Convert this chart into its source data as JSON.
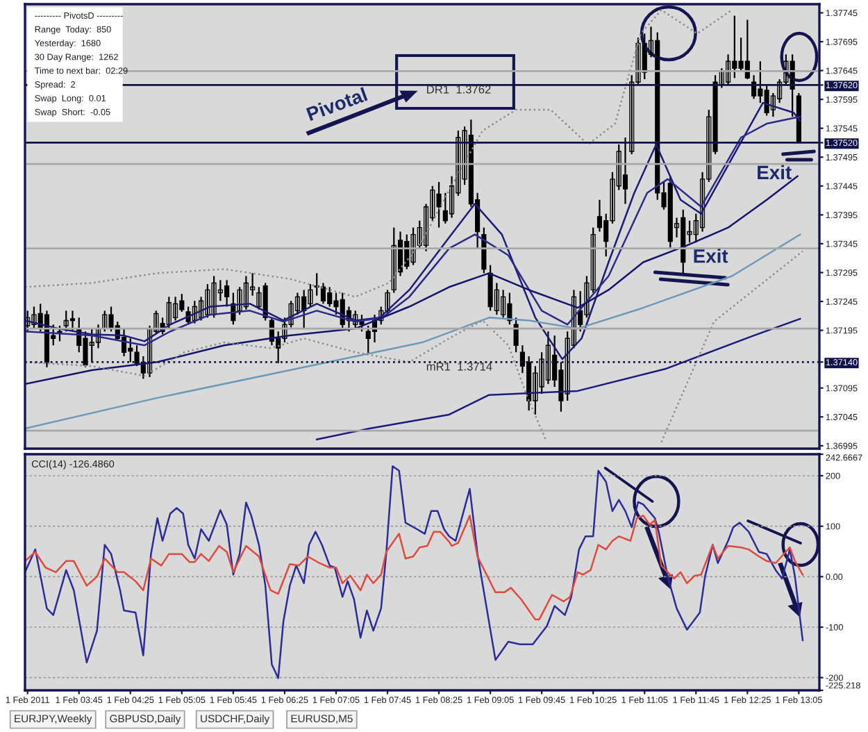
{
  "chart_data": [
    {
      "type": "candlestick",
      "x": [
        "2011-02-01T03:05",
        "2011-02-01T03:10",
        "2011-02-01T03:15",
        "2011-02-01T03:20",
        "2011-02-01T03:25",
        "2011-02-01T03:30",
        "2011-02-01T03:35",
        "2011-02-01T03:40",
        "2011-02-01T03:45",
        "2011-02-01T03:50",
        "2011-02-01T03:55",
        "2011-02-01T04:00",
        "2011-02-01T04:05",
        "2011-02-01T04:10",
        "2011-02-01T04:15",
        "2011-02-01T04:20",
        "2011-02-01T04:25",
        "2011-02-01T04:30",
        "2011-02-01T04:35",
        "2011-02-01T04:40",
        "2011-02-01T04:45",
        "2011-02-01T04:50",
        "2011-02-01T04:55",
        "2011-02-01T05:00",
        "2011-02-01T05:05",
        "2011-02-01T05:10",
        "2011-02-01T05:15",
        "2011-02-01T05:20",
        "2011-02-01T05:25",
        "2011-02-01T05:30",
        "2011-02-01T05:35",
        "2011-02-01T05:40",
        "2011-02-01T05:45",
        "2011-02-01T05:50",
        "2011-02-01T05:55",
        "2011-02-01T06:00",
        "2011-02-01T06:05",
        "2011-02-01T06:10",
        "2011-02-01T06:15",
        "2011-02-01T06:20",
        "2011-02-01T06:25",
        "2011-02-01T06:30",
        "2011-02-01T06:35",
        "2011-02-01T06:40",
        "2011-02-01T06:45",
        "2011-02-01T06:50",
        "2011-02-01T06:55",
        "2011-02-01T07:00",
        "2011-02-01T07:05",
        "2011-02-01T07:10",
        "2011-02-01T07:15",
        "2011-02-01T07:20",
        "2011-02-01T07:25",
        "2011-02-01T07:30",
        "2011-02-01T07:35",
        "2011-02-01T07:40",
        "2011-02-01T07:45",
        "2011-02-01T07:50",
        "2011-02-01T07:55",
        "2011-02-01T08:00",
        "2011-02-01T08:05",
        "2011-02-01T08:10",
        "2011-02-01T08:15",
        "2011-02-01T08:20",
        "2011-02-01T08:25",
        "2011-02-01T08:30",
        "2011-02-01T08:35",
        "2011-02-01T08:40",
        "2011-02-01T08:45",
        "2011-02-01T08:50",
        "2011-02-01T08:55",
        "2011-02-01T09:00",
        "2011-02-01T09:05",
        "2011-02-01T09:10",
        "2011-02-01T09:15",
        "2011-02-01T09:20",
        "2011-02-01T09:25",
        "2011-02-01T09:30",
        "2011-02-01T09:35",
        "2011-02-01T09:40",
        "2011-02-01T09:45",
        "2011-02-01T09:50",
        "2011-02-01T09:55",
        "2011-02-01T10:00",
        "2011-02-01T10:05",
        "2011-02-01T10:10",
        "2011-02-01T10:15",
        "2011-02-01T10:20",
        "2011-02-01T10:25",
        "2011-02-01T10:30",
        "2011-02-01T10:35",
        "2011-02-01T10:40",
        "2011-02-01T10:45",
        "2011-02-01T10:50",
        "2011-02-01T10:55",
        "2011-02-01T11:00",
        "2011-02-01T11:05",
        "2011-02-01T11:10",
        "2011-02-01T11:15",
        "2011-02-01T11:20",
        "2011-02-01T11:25",
        "2011-02-01T11:30",
        "2011-02-01T11:35",
        "2011-02-01T11:40",
        "2011-02-01T11:45",
        "2011-02-01T11:50",
        "2011-02-01T11:55",
        "2011-02-01T12:00",
        "2011-02-01T12:05",
        "2011-02-01T12:10",
        "2011-02-01T12:15",
        "2011-02-01T12:20",
        "2011-02-01T12:25",
        "2011-02-01T12:30",
        "2011-02-01T12:35",
        "2011-02-01T12:40",
        "2011-02-01T12:45",
        "2011-02-01T12:50",
        "2011-02-01T12:55",
        "2011-02-01T13:00",
        "2011-02-01T13:05"
      ],
      "ohlc": [
        [
          1.37203,
          1.37229,
          1.37193,
          1.37217
        ],
        [
          1.37205,
          1.37236,
          1.37198,
          1.37222
        ],
        [
          1.37224,
          1.37241,
          1.37193,
          1.372
        ],
        [
          1.37222,
          1.37229,
          1.37131,
          1.3714
        ],
        [
          1.37186,
          1.37205,
          1.37169,
          1.37181
        ],
        [
          1.37193,
          1.37203,
          1.37176,
          1.37191
        ],
        [
          1.37203,
          1.37229,
          1.37193,
          1.37212
        ],
        [
          1.37215,
          1.37229,
          1.37193,
          1.37212
        ],
        [
          1.37198,
          1.37217,
          1.37157,
          1.37169
        ],
        [
          1.37181,
          1.37193,
          1.37131,
          1.37135
        ],
        [
          1.37169,
          1.37198,
          1.3714,
          1.37174
        ],
        [
          1.37174,
          1.37205,
          1.37164,
          1.37198
        ],
        [
          1.37198,
          1.37229,
          1.37193,
          1.37222
        ],
        [
          1.37222,
          1.37236,
          1.37193,
          1.37198
        ],
        [
          1.37203,
          1.3721,
          1.37179,
          1.37181
        ],
        [
          1.37183,
          1.37198,
          1.3715,
          1.37157
        ],
        [
          1.37164,
          1.37181,
          1.3714,
          1.37159
        ],
        [
          1.37157,
          1.37169,
          1.37133,
          1.37138
        ],
        [
          1.3714,
          1.3715,
          1.37111,
          1.37121
        ],
        [
          1.37121,
          1.37203,
          1.37114,
          1.37198
        ],
        [
          1.37193,
          1.37229,
          1.37188,
          1.37224
        ],
        [
          1.37207,
          1.37217,
          1.37188,
          1.37193
        ],
        [
          1.37205,
          1.37253,
          1.37198,
          1.37243
        ],
        [
          1.37217,
          1.37253,
          1.37212,
          1.37241
        ],
        [
          1.37246,
          1.37258,
          1.37227,
          1.37231
        ],
        [
          1.37227,
          1.37236,
          1.37205,
          1.3721
        ],
        [
          1.37212,
          1.37246,
          1.37207,
          1.37236
        ],
        [
          1.37217,
          1.37253,
          1.37212,
          1.37246
        ],
        [
          1.37222,
          1.37275,
          1.37217,
          1.37265
        ],
        [
          1.37222,
          1.37289,
          1.37217,
          1.37277
        ],
        [
          1.3726,
          1.37282,
          1.37246,
          1.37265
        ],
        [
          1.37272,
          1.37282,
          1.37236,
          1.37253
        ],
        [
          1.37241,
          1.3726,
          1.37205,
          1.37212
        ],
        [
          1.37229,
          1.3727,
          1.37222,
          1.37265
        ],
        [
          1.37236,
          1.37289,
          1.37231,
          1.37277
        ],
        [
          1.37265,
          1.37294,
          1.37255,
          1.3727
        ],
        [
          1.37236,
          1.3727,
          1.37231,
          1.3726
        ],
        [
          1.37272,
          1.37277,
          1.37212,
          1.37217
        ],
        [
          1.37212,
          1.37217,
          1.37169,
          1.37176
        ],
        [
          1.37181,
          1.37193,
          1.37138,
          1.37164
        ],
        [
          1.37181,
          1.37217,
          1.37174,
          1.37205
        ],
        [
          1.37205,
          1.37246,
          1.372,
          1.37241
        ],
        [
          1.37229,
          1.3726,
          1.37222,
          1.37253
        ],
        [
          1.37253,
          1.37265,
          1.37198,
          1.37229
        ],
        [
          1.37241,
          1.37275,
          1.37236,
          1.37265
        ],
        [
          1.3727,
          1.37294,
          1.37255,
          1.37272
        ],
        [
          1.3727,
          1.37277,
          1.37241,
          1.37246
        ],
        [
          1.3726,
          1.3727,
          1.37236,
          1.37241
        ],
        [
          1.37246,
          1.3726,
          1.37222,
          1.37236
        ],
        [
          1.37248,
          1.3726,
          1.37198,
          1.37205
        ],
        [
          1.37229,
          1.37236,
          1.37193,
          1.37212
        ],
        [
          1.37205,
          1.37229,
          1.37198,
          1.37222
        ],
        [
          1.37212,
          1.37222,
          1.37193,
          1.37205
        ],
        [
          1.37193,
          1.37203,
          1.37155,
          1.37181
        ],
        [
          1.37212,
          1.37222,
          1.37174,
          1.37193
        ],
        [
          1.37212,
          1.37236,
          1.37205,
          1.37229
        ],
        [
          1.37229,
          1.37265,
          1.37222,
          1.3726
        ],
        [
          1.37265,
          1.37373,
          1.3726,
          1.37342
        ],
        [
          1.37351,
          1.37366,
          1.37289,
          1.37296
        ],
        [
          1.37349,
          1.37361,
          1.37301,
          1.37306
        ],
        [
          1.37313,
          1.37373,
          1.37308,
          1.37361
        ],
        [
          1.37342,
          1.37385,
          1.37337,
          1.37373
        ],
        [
          1.37342,
          1.37414,
          1.37332,
          1.37409
        ],
        [
          1.3739,
          1.37445,
          1.37385,
          1.37438
        ],
        [
          1.37431,
          1.37452,
          1.37373,
          1.37409
        ],
        [
          1.37402,
          1.37433,
          1.3738,
          1.37385
        ],
        [
          1.37397,
          1.37462,
          1.3739,
          1.37445
        ],
        [
          1.37433,
          1.37541,
          1.37428,
          1.37529
        ],
        [
          1.37457,
          1.37548,
          1.37447,
          1.37541
        ],
        [
          1.37533,
          1.3756,
          1.37409,
          1.37414
        ],
        [
          1.37421,
          1.37433,
          1.37337,
          1.37366
        ],
        [
          1.37361,
          1.37373,
          1.37294,
          1.37301
        ],
        [
          1.37294,
          1.37308,
          1.37229,
          1.37236
        ],
        [
          1.37229,
          1.37277,
          1.37222,
          1.37265
        ],
        [
          1.37222,
          1.37265,
          1.37217,
          1.37253
        ],
        [
          1.37241,
          1.3726,
          1.37205,
          1.37212
        ],
        [
          1.37205,
          1.37217,
          1.37157,
          1.37169
        ],
        [
          1.37157,
          1.37169,
          1.37121,
          1.37133
        ],
        [
          1.3714,
          1.3715,
          1.37056,
          1.37073
        ],
        [
          1.37073,
          1.37133,
          1.37049,
          1.37121
        ],
        [
          1.37097,
          1.37157,
          1.37085,
          1.37145
        ],
        [
          1.37109,
          1.37193,
          1.37102,
          1.37169
        ],
        [
          1.37152,
          1.37186,
          1.37097,
          1.37109
        ],
        [
          1.37126,
          1.3714,
          1.37054,
          1.37073
        ],
        [
          1.37085,
          1.37193,
          1.37073,
          1.37181
        ],
        [
          1.37169,
          1.37265,
          1.37164,
          1.37253
        ],
        [
          1.37229,
          1.37263,
          1.37193,
          1.37205
        ],
        [
          1.37222,
          1.37289,
          1.37217,
          1.37277
        ],
        [
          1.37265,
          1.37373,
          1.3726,
          1.37361
        ],
        [
          1.37392,
          1.37421,
          1.37366,
          1.37373
        ],
        [
          1.37385,
          1.37397,
          1.37323,
          1.37349
        ],
        [
          1.37385,
          1.37469,
          1.3738,
          1.37457
        ],
        [
          1.37445,
          1.37517,
          1.37438,
          1.37505
        ],
        [
          1.37464,
          1.37529,
          1.37414,
          1.3744
        ],
        [
          1.37505,
          1.37637,
          1.375,
          1.37625
        ],
        [
          1.37625,
          1.37702,
          1.3762,
          1.37692
        ],
        [
          1.37692,
          1.37709,
          1.3763,
          1.37642
        ],
        [
          1.37673,
          1.37721,
          1.37668,
          1.37697
        ],
        [
          1.37697,
          1.37711,
          1.37421,
          1.37433
        ],
        [
          1.37433,
          1.37452,
          1.37404,
          1.37409
        ],
        [
          1.3745,
          1.37462,
          1.37337,
          1.37349
        ],
        [
          1.37373,
          1.3739,
          1.37356,
          1.3738
        ],
        [
          1.3739,
          1.37404,
          1.37294,
          1.37313
        ],
        [
          1.37361,
          1.37385,
          1.37347,
          1.37366
        ],
        [
          1.37361,
          1.37397,
          1.37347,
          1.37385
        ],
        [
          1.37373,
          1.37469,
          1.37366,
          1.37457
        ],
        [
          1.37457,
          1.37577,
          1.37452,
          1.37565
        ],
        [
          1.37625,
          1.37637,
          1.375,
          1.37505
        ],
        [
          1.3762,
          1.37649,
          1.37615,
          1.37644
        ],
        [
          1.37625,
          1.37673,
          1.3762,
          1.37661
        ],
        [
          1.37661,
          1.3774,
          1.37632,
          1.37649
        ],
        [
          1.37661,
          1.37702,
          1.37644,
          1.37649
        ],
        [
          1.37661,
          1.37733,
          1.3763,
          1.37632
        ],
        [
          1.37625,
          1.37637,
          1.37596,
          1.37601
        ],
        [
          1.37613,
          1.37661,
          1.37589,
          1.37601
        ],
        [
          1.37611,
          1.3762,
          1.37567,
          1.37572
        ],
        [
          1.37577,
          1.37606,
          1.37565,
          1.37601
        ],
        [
          1.37596,
          1.3763,
          1.37589,
          1.37625
        ],
        [
          1.37625,
          1.37673,
          1.3762,
          1.37661
        ],
        [
          1.37661,
          1.37673,
          1.37565,
          1.37613
        ],
        [
          1.37601,
          1.37606,
          1.37519,
          1.3752
        ]
      ],
      "series": [
        {
          "type": "line",
          "color": "#1c1c78",
          "x": [
            "2011-02-01T03:03",
            "2011-02-01T03:29",
            "2011-02-01T03:55",
            "2011-02-01T04:20",
            "2011-02-01T04:36",
            "2011-02-01T04:56",
            "2011-02-01T05:27",
            "2011-02-01T05:58",
            "2011-02-01T06:24",
            "2011-02-01T06:50",
            "2011-02-01T07:20",
            "2011-02-01T07:39",
            "2011-02-01T08:02",
            "2011-02-01T08:33",
            "2011-02-01T08:53",
            "2011-02-01T09:14",
            "2011-02-01T09:40",
            "2011-02-01T10:01",
            "2011-02-01T10:16",
            "2011-02-01T10:37",
            "2011-02-01T10:57",
            "2011-02-01T11:14",
            "2011-02-01T11:33",
            "2011-02-01T11:49",
            "2011-02-01T12:10",
            "2011-02-01T12:37",
            "2011-02-01T13:01",
            "2011-02-01T13:06"
          ],
          "values": [
            1.37212,
            1.37198,
            1.37188,
            1.37186,
            1.37176,
            1.37205,
            1.37236,
            1.37241,
            1.37212,
            1.37241,
            1.37212,
            1.37217,
            1.37265,
            1.37356,
            1.37414,
            1.37361,
            1.37217,
            1.37145,
            1.37181,
            1.37313,
            1.37433,
            1.37517,
            1.37421,
            1.37397,
            1.37481,
            1.37589,
            1.37572,
            1.37558
          ]
        },
        {
          "type": "line",
          "color": "#2a2a8a",
          "x": [
            "2011-02-01T03:03",
            "2011-02-01T03:55",
            "2011-02-01T04:36",
            "2011-02-01T04:56",
            "2011-02-01T05:27",
            "2011-02-01T05:58",
            "2011-02-01T06:24",
            "2011-02-01T06:50",
            "2011-02-01T07:20",
            "2011-02-01T07:41",
            "2011-02-01T08:02",
            "2011-02-01T08:33",
            "2011-02-01T08:53",
            "2011-02-01T09:19",
            "2011-02-01T09:45",
            "2011-02-01T10:05",
            "2011-02-01T10:37",
            "2011-02-01T11:07",
            "2011-02-01T11:23",
            "2011-02-01T11:49",
            "2011-02-01T12:20",
            "2011-02-01T12:40",
            "2011-02-01T13:06"
          ],
          "values": [
            1.37193,
            1.37186,
            1.37169,
            1.37193,
            1.37222,
            1.37229,
            1.3721,
            1.37229,
            1.3721,
            1.37217,
            1.37253,
            1.37337,
            1.37361,
            1.37325,
            1.37229,
            1.37205,
            1.37289,
            1.37433,
            1.37457,
            1.37409,
            1.37529,
            1.37553,
            1.37565
          ]
        },
        {
          "type": "line",
          "color": "#14146e",
          "x": [
            "2011-02-01T03:03",
            "2011-02-01T03:55",
            "2011-02-01T04:46",
            "2011-02-01T05:38",
            "2011-02-01T06:29",
            "2011-02-01T07:20",
            "2011-02-01T08:02",
            "2011-02-01T08:33",
            "2011-02-01T09:04",
            "2011-02-01T09:35",
            "2011-02-01T10:13",
            "2011-02-01T10:37",
            "2011-02-01T11:04",
            "2011-02-01T11:38",
            "2011-02-01T12:10",
            "2011-02-01T12:40",
            "2011-02-01T13:04"
          ],
          "values": [
            1.37102,
            1.37126,
            1.3714,
            1.37169,
            1.37186,
            1.37198,
            1.37236,
            1.3727,
            1.37294,
            1.37265,
            1.37234,
            1.37265,
            1.37313,
            1.37342,
            1.37373,
            1.37421,
            1.37462
          ]
        },
        {
          "type": "line",
          "color": "#6a9ab8",
          "x": [
            "2011-02-01T03:03",
            "2011-02-01T04:46",
            "2011-02-01T06:29",
            "2011-02-01T08:12",
            "2011-02-01T09:04",
            "2011-02-01T09:35",
            "2011-02-01T10:13",
            "2011-02-01T11:04",
            "2011-02-01T12:13",
            "2011-02-01T13:06"
          ],
          "values": [
            1.37025,
            1.37078,
            1.37126,
            1.37174,
            1.37217,
            1.37212,
            1.37198,
            1.37234,
            1.37289,
            1.37361
          ]
        },
        {
          "type": "line",
          "color": "#1a1a80",
          "x": [
            "2011-02-01T06:50",
            "2011-02-01T07:31",
            "2011-02-01T08:33",
            "2011-02-01T09:04",
            "2011-02-01T10:13",
            "2011-02-01T11:21",
            "2011-02-01T12:30",
            "2011-02-01T13:06"
          ],
          "values": [
            1.37006,
            1.37025,
            1.37049,
            1.37083,
            1.3709,
            1.37128,
            1.37186,
            1.37215
          ]
        },
        {
          "type": "line",
          "color": "#8c8c8c",
          "line_style": "dotted",
          "x": [
            "2011-02-01T03:03",
            "2011-02-01T03:55",
            "2011-02-01T04:46",
            "2011-02-01T05:38",
            "2011-02-01T06:29",
            "2011-02-01T07:20",
            "2011-02-01T07:46",
            "2011-02-01T08:12",
            "2011-02-01T08:33",
            "2011-02-01T08:59",
            "2011-02-01T09:25",
            "2011-02-01T09:52",
            "2011-02-01T10:21",
            "2011-02-01T10:42",
            "2011-02-01T11:02",
            "2011-02-01T11:18",
            "2011-02-01T11:46",
            "2011-02-01T12:13"
          ],
          "values": [
            1.3727,
            1.37277,
            1.37294,
            1.37301,
            1.37284,
            1.37253,
            1.37277,
            1.37349,
            1.37438,
            1.37541,
            1.37577,
            1.37577,
            1.37517,
            1.37553,
            1.37709,
            1.3775,
            1.37709,
            1.3775
          ]
        },
        {
          "type": "line",
          "color": "#8c8c8c",
          "line_style": "dotted",
          "x": [
            "2011-02-01T03:03",
            "2011-02-01T03:55",
            "2011-02-01T04:36",
            "2011-02-01T05:07",
            "2011-02-01T05:38",
            "2011-02-01T06:14",
            "2011-02-01T06:40",
            "2011-02-01T07:20",
            "2011-02-01T08:02",
            "2011-02-01T08:33",
            "2011-02-01T08:59",
            "2011-02-01T09:19",
            "2011-02-01T09:35",
            "2011-02-01T09:48",
            "2011-02-01T10:30",
            "2011-02-01T11:18",
            "2011-02-01T11:59",
            "2011-02-01T13:08"
          ],
          "values": [
            1.3714,
            1.37133,
            1.37116,
            1.37157,
            1.37174,
            1.37164,
            1.37181,
            1.37157,
            1.3714,
            1.37181,
            1.37212,
            1.37169,
            1.37073,
            1.37006,
            null,
            1.37001,
            1.3721,
            1.37332
          ]
        }
      ],
      "ref_lines": [
        {
          "axis": "y",
          "value": 1.3762,
          "label": "DR1  1.3762",
          "color": "#10104a",
          "line_style": "solid"
        },
        {
          "axis": "y",
          "value": 1.3714,
          "label": "mR1  1.3714",
          "color": "#10104a",
          "line_style": "dotted"
        },
        {
          "axis": "y",
          "value": 1.3752,
          "color": "#10104a",
          "line_style": "solid"
        },
        {
          "axis": "y",
          "value": 1.37644,
          "color": "#a8a8a8",
          "line_style": "solid"
        },
        {
          "axis": "y",
          "value": 1.37483,
          "color": "#a8a8a8",
          "line_style": "solid"
        },
        {
          "axis": "y",
          "value": 1.37337,
          "color": "#a8a8a8",
          "line_style": "solid"
        },
        {
          "axis": "y",
          "value": 1.37198,
          "color": "#a8a8a8",
          "line_style": "solid"
        },
        {
          "axis": "y",
          "value": 1.37021,
          "color": "#a8a8a8",
          "line_style": "solid"
        }
      ],
      "annotations": [
        "--------- PivotsD ---------",
        "Range  Today:  850",
        "Yesterday:  1680",
        "30 Day Range:  1262",
        "Time to next bar:  02:29",
        "Spread:  2",
        "Swap  Long:  0.01",
        "Swap  Short:  -0.05",
        "Pivotal",
        {
          "text": "Exit",
          "x": "2011-02-01T11:35",
          "y": 1.37294
        },
        {
          "text": "Exit",
          "x": "2011-02-01T13:05",
          "y": 1.37519
        }
      ],
      "xlim": [
        "2011-02-01T03:03",
        "2011-02-01T13:21"
      ],
      "ylim": [
        1.3699,
        1.3776
      ],
      "yticks": [
        1.36995,
        1.37045,
        1.37095,
        {
          "value": 1.3714,
          "label": "1.37140"
        },
        1.37195,
        1.37245,
        1.37295,
        1.37345,
        1.37395,
        1.37445,
        1.37495,
        {
          "value": 1.3752,
          "label": "1.37520"
        },
        1.37545,
        1.37595,
        {
          "value": 1.3762,
          "label": "1.37620"
        },
        1.37645,
        1.37695,
        1.37745
      ],
      "tick_labels": "y"
    },
    {
      "type": "line",
      "title": "CCI(14) -126.4860",
      "series": [
        {
          "color": "#2b2b9c",
          "x": [
            "2011-02-01T03:03",
            "2011-02-01T03:11",
            "2011-02-01T03:20",
            "2011-02-01T03:25",
            "2011-02-01T03:35",
            "2011-02-01T03:41",
            "2011-02-01T03:51",
            "2011-02-01T03:59",
            "2011-02-01T04:05",
            "2011-02-01T04:10",
            "2011-02-01T04:17",
            "2011-02-01T04:20",
            "2011-02-01T04:29",
            "2011-02-01T04:35",
            "2011-02-01T04:41",
            "2011-02-01T04:46",
            "2011-02-01T04:50",
            "2011-02-01T04:56",
            "2011-02-01T05:01",
            "2011-02-01T05:06",
            "2011-02-01T05:10",
            "2011-02-01T05:15",
            "2011-02-01T05:20",
            "2011-02-01T05:26",
            "2011-02-01T05:35",
            "2011-02-01T05:40",
            "2011-02-01T05:45",
            "2011-02-01T05:50",
            "2011-02-01T05:55",
            "2011-02-01T05:59",
            "2011-02-01T06:05",
            "2011-02-01T06:10",
            "2011-02-01T06:15",
            "2011-02-01T06:20",
            "2011-02-01T06:24",
            "2011-02-01T06:29",
            "2011-02-01T06:34",
            "2011-02-01T06:40",
            "2011-02-01T06:44",
            "2011-02-01T06:49",
            "2011-02-01T06:54",
            "2011-02-01T07:00",
            "2011-02-01T07:04",
            "2011-02-01T07:10",
            "2011-02-01T07:14",
            "2011-02-01T07:19",
            "2011-02-01T07:24",
            "2011-02-01T07:29",
            "2011-02-01T07:34",
            "2011-02-01T07:40",
            "2011-02-01T07:44",
            "2011-02-01T07:49",
            "2011-02-01T07:54",
            "2011-02-01T07:59",
            "2011-02-01T08:08",
            "2011-02-01T08:14",
            "2011-02-01T08:19",
            "2011-02-01T08:24",
            "2011-02-01T08:29",
            "2011-02-01T08:33",
            "2011-02-01T08:38",
            "2011-02-01T08:49",
            "2011-02-01T08:55",
            "2011-02-01T09:09",
            "2011-02-01T09:19",
            "2011-02-01T09:28",
            "2011-02-01T09:38",
            "2011-02-01T09:49",
            "2011-02-01T09:55",
            "2011-02-01T10:03",
            "2011-02-01T10:08",
            "2011-02-01T10:14",
            "2011-02-01T10:19",
            "2011-02-01T10:25",
            "2011-02-01T10:29",
            "2011-02-01T10:35",
            "2011-02-01T10:40",
            "2011-02-01T10:45",
            "2011-02-01T10:50",
            "2011-02-01T10:55",
            "2011-02-01T11:00",
            "2011-02-01T11:04",
            "2011-02-01T11:13",
            "2011-02-01T11:16",
            "2011-02-01T11:23",
            "2011-02-01T11:30",
            "2011-02-01T11:38",
            "2011-02-01T11:48",
            "2011-02-01T11:52",
            "2011-02-01T11:58",
            "2011-02-01T12:02",
            "2011-02-01T12:10",
            "2011-02-01T12:14",
            "2011-02-01T12:19",
            "2011-02-01T12:26",
            "2011-02-01T12:34",
            "2011-02-01T12:40",
            "2011-02-01T12:47",
            "2011-02-01T12:52",
            "2011-02-01T12:58",
            "2011-02-01T13:02",
            "2011-02-01T13:08"
          ],
          "values": [
            9,
            54,
            -63,
            -76,
            13,
            -27,
            -170,
            -107,
            63,
            45,
            -27,
            -67,
            -71,
            -156,
            45,
            116,
            71,
            125,
            136,
            125,
            63,
            36,
            94,
            71,
            132,
            103,
            4,
            45,
            147,
            121,
            63,
            -18,
            -174,
            -201,
            -89,
            -18,
            22,
            -13,
            63,
            89,
            63,
            22,
            18,
            -40,
            -9,
            -45,
            -121,
            -67,
            -107,
            -63,
            45,
            219,
            210,
            107,
            94,
            85,
            130,
            130,
            94,
            80,
            71,
            174,
            45,
            -165,
            -129,
            -134,
            -134,
            -98,
            -58,
            -76,
            -40,
            54,
            80,
            80,
            210,
            188,
            130,
            152,
            130,
            98,
            148,
            143,
            116,
            89,
            0,
            -63,
            -105,
            -71,
            0,
            63,
            27,
            71,
            98,
            107,
            89,
            49,
            45,
            13,
            -4,
            54,
            0,
            -126
          ]
        },
        {
          "color": "#e04a3c",
          "x": [
            "2011-02-01T03:03",
            "2011-02-01T03:11",
            "2011-02-01T03:19",
            "2011-02-01T03:27",
            "2011-02-01T03:35",
            "2011-02-01T03:41",
            "2011-02-01T03:51",
            "2011-02-01T03:59",
            "2011-02-01T04:05",
            "2011-02-01T04:15",
            "2011-02-01T04:20",
            "2011-02-01T04:29",
            "2011-02-01T04:35",
            "2011-02-01T04:41",
            "2011-02-01T04:49",
            "2011-02-01T04:55",
            "2011-02-01T05:05",
            "2011-02-01T05:11",
            "2011-02-01T05:15",
            "2011-02-01T05:20",
            "2011-02-01T05:26",
            "2011-02-01T05:34",
            "2011-02-01T05:40",
            "2011-02-01T05:45",
            "2011-02-01T05:55",
            "2011-02-01T06:05",
            "2011-02-01T06:14",
            "2011-02-01T06:20",
            "2011-02-01T06:29",
            "2011-02-01T06:36",
            "2011-02-01T06:43",
            "2011-02-01T06:52",
            "2011-02-01T07:00",
            "2011-02-01T07:05",
            "2011-02-01T07:10",
            "2011-02-01T07:16",
            "2011-02-01T07:24",
            "2011-02-01T07:29",
            "2011-02-01T07:34",
            "2011-02-01T07:40",
            "2011-02-01T07:44",
            "2011-02-01T07:54",
            "2011-02-01T07:59",
            "2011-02-01T08:05",
            "2011-02-01T08:10",
            "2011-02-01T08:16",
            "2011-02-01T08:21",
            "2011-02-01T08:26",
            "2011-02-01T08:33",
            "2011-02-01T08:35",
            "2011-02-01T08:40",
            "2011-02-01T08:49",
            "2011-02-01T08:55",
            "2011-02-01T09:09",
            "2011-02-01T09:16",
            "2011-02-01T09:21",
            "2011-02-01T09:29",
            "2011-02-01T09:40",
            "2011-02-01T09:43",
            "2011-02-01T09:53",
            "2011-02-01T10:02",
            "2011-02-01T10:07",
            "2011-02-01T10:13",
            "2011-02-01T10:17",
            "2011-02-01T10:23",
            "2011-02-01T10:29",
            "2011-02-01T10:35",
            "2011-02-01T10:40",
            "2011-02-01T10:45",
            "2011-02-01T10:54",
            "2011-02-01T10:59",
            "2011-02-01T11:04",
            "2011-02-01T11:09",
            "2011-02-01T11:13",
            "2011-02-01T11:18",
            "2011-02-01T11:23",
            "2011-02-01T11:28",
            "2011-02-01T11:33",
            "2011-02-01T11:38",
            "2011-02-01T11:44",
            "2011-02-01T11:49",
            "2011-02-01T11:58",
            "2011-02-01T12:02",
            "2011-02-01T12:10",
            "2011-02-01T12:20",
            "2011-02-01T12:26",
            "2011-02-01T12:34",
            "2011-02-01T12:40",
            "2011-02-01T12:47",
            "2011-02-01T12:58",
            "2011-02-01T13:02",
            "2011-02-01T13:08"
          ],
          "values": [
            31,
            49,
            18,
            9,
            31,
            31,
            -18,
            0,
            36,
            9,
            9,
            -9,
            -27,
            36,
            22,
            45,
            45,
            29,
            29,
            45,
            31,
            61,
            49,
            9,
            61,
            40,
            -27,
            -34,
            25,
            22,
            40,
            27,
            18,
            18,
            -13,
            2,
            -27,
            4,
            -13,
            4,
            49,
            85,
            36,
            40,
            58,
            61,
            89,
            89,
            69,
            61,
            67,
            121,
            40,
            -31,
            -31,
            -22,
            -45,
            -85,
            -85,
            -36,
            -49,
            -40,
            9,
            4,
            13,
            63,
            54,
            71,
            80,
            71,
            116,
            121,
            103,
            112,
            22,
            9,
            -4,
            9,
            -13,
            2,
            4,
            63,
            36,
            61,
            58,
            54,
            40,
            31,
            27,
            58,
            31,
            4
          ]
        }
      ],
      "xlim": [
        "2011-02-01T03:03",
        "2011-02-01T13:21"
      ],
      "xticks": [
        {
          "value": "2011-02-01T03:05",
          "label": "1 Feb 2011"
        },
        {
          "value": "2011-02-01T03:45",
          "label": "1 Feb 03:45"
        },
        {
          "value": "2011-02-01T04:25",
          "label": "1 Feb 04:25"
        },
        {
          "value": "2011-02-01T05:05",
          "label": "1 Feb 05:05"
        },
        {
          "value": "2011-02-01T05:45",
          "label": "1 Feb 05:45"
        },
        {
          "value": "2011-02-01T06:25",
          "label": "1 Feb 06:25"
        },
        {
          "value": "2011-02-01T07:05",
          "label": "1 Feb 07:05"
        },
        {
          "value": "2011-02-01T07:45",
          "label": "1 Feb 07:45"
        },
        {
          "value": "2011-02-01T08:25",
          "label": "1 Feb 08:25"
        },
        {
          "value": "2011-02-01T09:05",
          "label": "1 Feb 09:05"
        },
        {
          "value": "2011-02-01T09:45",
          "label": "1 Feb 09:45"
        },
        {
          "value": "2011-02-01T10:25",
          "label": "1 Feb 10:25"
        },
        {
          "value": "2011-02-01T11:05",
          "label": "1 Feb 11:05"
        },
        {
          "value": "2011-02-01T11:45",
          "label": "1 Feb 11:45"
        },
        {
          "value": "2011-02-01T12:25",
          "label": "1 Feb 12:25"
        },
        {
          "value": "2011-02-01T13:05",
          "label": "1 Feb 13:05"
        }
      ],
      "ylim": [
        -225.218,
        242.6667
      ],
      "yticks": [
        {
          "value": -225.218,
          "label": "-225.218"
        },
        -200,
        -100,
        {
          "value": 0,
          "label": "0.00"
        },
        100,
        200,
        {
          "value": 242.6667,
          "label": "242.6667"
        }
      ],
      "grid": "y",
      "annotations": [
        "EURJPY,Weekly",
        "GBPUSD,Daily",
        "USDCHF,Daily",
        "EURUSD,M5"
      ]
    }
  ]
}
